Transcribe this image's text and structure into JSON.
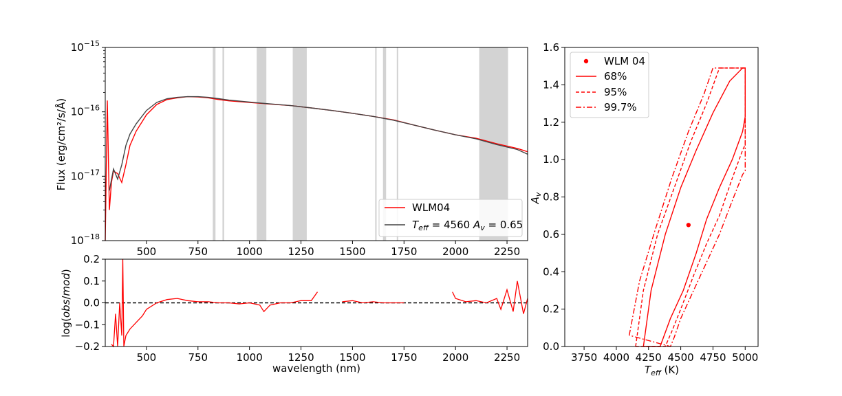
{
  "chart_data": [
    {
      "type": "line",
      "panel": "spectrum",
      "ylabel": "Flux (erg/cm²/s/Å)",
      "yscale": "log",
      "xlim": [
        300,
        2350
      ],
      "ylim": [
        1e-18,
        1e-15
      ],
      "xticks": [
        "500",
        "750",
        "1000",
        "1250",
        "1500",
        "1750",
        "2000",
        "2250"
      ],
      "yticks": [
        {
          "base": "10",
          "exp": "−18",
          "value": 1e-18
        },
        {
          "base": "10",
          "exp": "−17",
          "value": 1e-17
        },
        {
          "base": "10",
          "exp": "−16",
          "value": 1e-16
        },
        {
          "base": "10",
          "exp": "−15",
          "value": 1e-15
        }
      ],
      "masked_bands": [
        [
          822,
          835
        ],
        [
          869,
          877
        ],
        [
          1035,
          1082
        ],
        [
          1210,
          1278
        ],
        [
          1610,
          1617
        ],
        [
          1648,
          1663
        ],
        [
          1715,
          1722
        ],
        [
          2115,
          2255
        ]
      ],
      "legend": {
        "location": "lower-right",
        "entries": [
          "WLM04",
          "T_eff = 4560 A_v = 0.65"
        ]
      },
      "series": [
        {
          "name": "WLM04",
          "color": "#ff0000",
          "x": [
            300,
            310,
            320,
            330,
            340,
            360,
            380,
            400,
            420,
            450,
            500,
            550,
            600,
            650,
            700,
            750,
            800,
            850,
            900,
            1000,
            1100,
            1200,
            1300,
            1400,
            1500,
            1600,
            1700,
            1800,
            1900,
            2000,
            2100,
            2200,
            2300,
            2350
          ],
          "y": [
            1e-18,
            1.5e-16,
            3e-18,
            8e-18,
            1.2e-17,
            1.1e-17,
            8e-18,
            1.5e-17,
            3e-17,
            5e-17,
            9e-17,
            1.3e-16,
            1.55e-16,
            1.65e-16,
            1.72e-16,
            1.7e-16,
            1.65e-16,
            1.55e-16,
            1.48e-16,
            1.4e-16,
            1.32e-16,
            1.25e-16,
            1.15e-16,
            1.05e-16,
            9.5e-17,
            8.5e-17,
            7.5e-17,
            6.2e-17,
            5.2e-17,
            4.4e-17,
            3.9e-17,
            3.2e-17,
            2.7e-17,
            2.4e-17
          ]
        },
        {
          "name": "T_eff = 4560 A_v = 0.65",
          "color": "#444444",
          "x": [
            320,
            340,
            360,
            380,
            400,
            420,
            450,
            500,
            550,
            600,
            650,
            700,
            750,
            800,
            850,
            900,
            1000,
            1100,
            1200,
            1300,
            1400,
            1500,
            1600,
            1700,
            1800,
            1900,
            2000,
            2100,
            2200,
            2300,
            2350
          ],
          "y": [
            6e-18,
            1.3e-17,
            9e-18,
            1.5e-17,
            3e-17,
            4.5e-17,
            6.5e-17,
            1.05e-16,
            1.4e-16,
            1.6e-16,
            1.68e-16,
            1.72e-16,
            1.72e-16,
            1.68e-16,
            1.6e-16,
            1.52e-16,
            1.42e-16,
            1.33e-16,
            1.25e-16,
            1.15e-16,
            1.05e-16,
            9.5e-17,
            8.5e-17,
            7.4e-17,
            6.2e-17,
            5.2e-17,
            4.4e-17,
            3.8e-17,
            3.1e-17,
            2.6e-17,
            2.2e-17
          ]
        }
      ]
    },
    {
      "type": "line",
      "panel": "residuals",
      "xlabel": "wavelength (nm)",
      "ylabel": "log(obs/mod)",
      "xlim": [
        300,
        2350
      ],
      "ylim": [
        -0.2,
        0.2
      ],
      "xticks": [
        "500",
        "750",
        "1000",
        "1250",
        "1500",
        "1750",
        "2000",
        "2250"
      ],
      "yticks": [
        "−0.2",
        "−0.1",
        "0.0",
        "0.1",
        "0.2"
      ],
      "reference_line": {
        "y": 0.0,
        "style": "dashed",
        "color": "#000000"
      },
      "series": [
        {
          "color": "#ff0000",
          "segments": [
            {
              "x": [
                330,
                340,
                350,
                360,
                370,
                380,
                385,
                390,
                400,
                420,
                450,
                480,
                500,
                550,
                600,
                650,
                700,
                750,
                800,
                850,
                900,
                950,
                1000,
                1050,
                1070,
                1100,
                1150,
                1200,
                1250,
                1300,
                1330
              ],
              "y": [
                -0.19,
                -0.2,
                -0.05,
                -0.2,
                0.0,
                -0.15,
                0.2,
                -0.2,
                -0.15,
                -0.12,
                -0.09,
                -0.06,
                -0.03,
                0.0,
                0.015,
                0.02,
                0.01,
                0.005,
                0.005,
                0.0,
                0.0,
                -0.005,
                0.0,
                -0.01,
                -0.04,
                -0.01,
                0.0,
                0.0,
                0.01,
                0.01,
                0.05
              ]
            },
            {
              "x": [
                1450,
                1500,
                1550,
                1600,
                1650,
                1700,
                1750
              ],
              "y": [
                0.005,
                0.01,
                0.0,
                0.005,
                0.0,
                0.0,
                0.0
              ]
            },
            {
              "x": [
                1985,
                2000,
                2050,
                2100,
                2150,
                2200,
                2220,
                2250,
                2280,
                2300,
                2330,
                2350
              ],
              "y": [
                0.05,
                0.02,
                0.005,
                0.01,
                0.0,
                0.02,
                -0.03,
                0.06,
                -0.04,
                0.1,
                -0.05,
                0.02
              ]
            }
          ]
        }
      ]
    },
    {
      "type": "scatter",
      "panel": "confidence",
      "xlabel": "T_eff (K)",
      "ylabel": "A_v",
      "xlim": [
        3600,
        5100
      ],
      "ylim": [
        0.0,
        1.6
      ],
      "xticks": [
        "3750",
        "4000",
        "4250",
        "4500",
        "4750",
        "5000"
      ],
      "yticks": [
        "0.0",
        "0.2",
        "0.4",
        "0.6",
        "0.8",
        "1.0",
        "1.2",
        "1.4",
        "1.6"
      ],
      "legend": {
        "location": "top-left",
        "entries": [
          "WLM 04",
          "68%",
          "95%",
          "99.7%"
        ]
      },
      "point": {
        "name": "WLM 04",
        "x": 4560,
        "y": 0.65,
        "color": "#ff0000"
      },
      "contours": [
        {
          "name": "68%",
          "style": "solid",
          "color": "#ff0000",
          "x": [
            4210,
            4270,
            4380,
            4500,
            4620,
            4750,
            4880,
            4980,
            5000,
            5000,
            4980,
            4900,
            4800,
            4700,
            4620,
            4520,
            4420,
            4340,
            4210
          ],
          "y": [
            0.0,
            0.3,
            0.6,
            0.85,
            1.05,
            1.25,
            1.42,
            1.49,
            1.49,
            1.23,
            1.15,
            1.0,
            0.85,
            0.68,
            0.5,
            0.3,
            0.15,
            0.0,
            0.0
          ]
        },
        {
          "name": "95%",
          "style": "dashed",
          "color": "#ff0000",
          "x": [
            4150,
            4210,
            4320,
            4450,
            4580,
            4700,
            4800,
            4900,
            5000,
            5000,
            4980,
            4900,
            4800,
            4700,
            4600,
            4500,
            4430,
            4380,
            4150
          ],
          "y": [
            0.0,
            0.3,
            0.6,
            0.85,
            1.1,
            1.3,
            1.49,
            1.49,
            1.49,
            1.08,
            1.05,
            0.9,
            0.7,
            0.55,
            0.38,
            0.2,
            0.08,
            0.0,
            0.0
          ]
        },
        {
          "name": "99.7%",
          "style": "dashdot",
          "color": "#ff0000",
          "x": [
            4100,
            4180,
            4300,
            4430,
            4560,
            4680,
            4750,
            4850,
            5000,
            5000,
            4980,
            4900,
            4800,
            4700,
            4600,
            4500,
            4450,
            4420,
            4100
          ],
          "y": [
            0.06,
            0.35,
            0.62,
            0.9,
            1.15,
            1.35,
            1.49,
            1.49,
            1.49,
            0.94,
            0.92,
            0.78,
            0.6,
            0.45,
            0.3,
            0.15,
            0.05,
            0.0,
            0.06
          ]
        }
      ]
    }
  ]
}
